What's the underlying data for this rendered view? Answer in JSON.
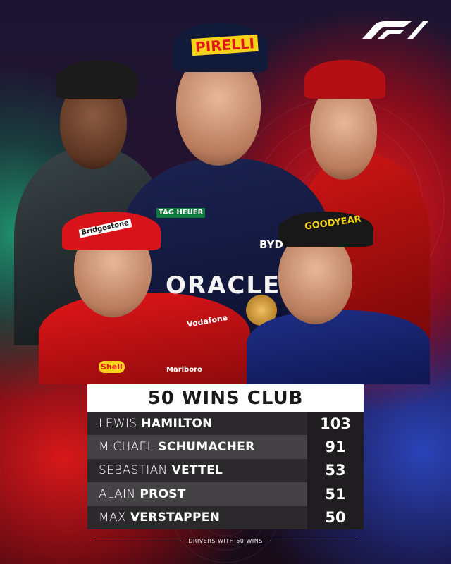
{
  "brand": {
    "logo": "F1",
    "logo_icon": "f1-logo"
  },
  "colors": {
    "title_bg": "#ffffff",
    "row_dark": "#2b292b",
    "row_light": "#444244",
    "value_col": "#1f1d1f",
    "accent_red": "#e21a1a",
    "accent_green": "#1f8f6a",
    "accent_blue": "#2a44b8"
  },
  "photo_texts": [
    "PIRELLI",
    "TAG HEUER",
    "ORACLE",
    "GOODYEAR",
    "Shell",
    "Vodafone",
    "Marlboro",
    "BYD",
    "Bridgestone"
  ],
  "table": {
    "title": "50 WINS CLUB",
    "rows": [
      {
        "first": "LEWIS",
        "last": "HAMILTON",
        "wins": "103"
      },
      {
        "first": "MICHAEL",
        "last": "SCHUMACHER",
        "wins": "91"
      },
      {
        "first": "SEBASTIAN",
        "last": "VETTEL",
        "wins": "53"
      },
      {
        "first": "ALAIN",
        "last": "PROST",
        "wins": "51"
      },
      {
        "first": "MAX",
        "last": "VERSTAPPEN",
        "wins": "50"
      }
    ]
  },
  "footer": {
    "caption": "DRIVERS WITH 50 WINS"
  }
}
